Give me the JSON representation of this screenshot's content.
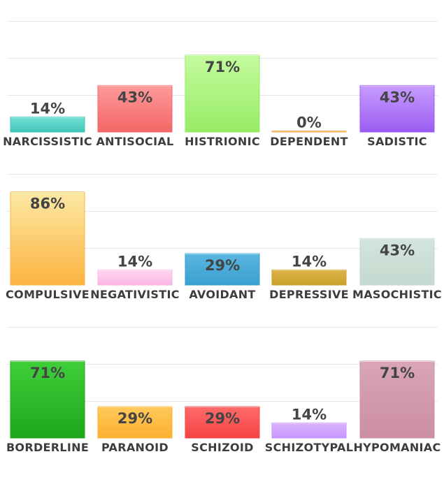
{
  "chart_data": [
    {
      "type": "bar",
      "ylim": [
        0,
        100
      ],
      "categories": [
        "NARCISSISTIC",
        "ANTISOCIAL",
        "HISTRIONIC",
        "DEPENDENT",
        "SADISTIC"
      ],
      "values": [
        14,
        43,
        71,
        0,
        43
      ],
      "value_labels": [
        "14%",
        "43%",
        "71%",
        "0%",
        "43%"
      ],
      "colors": [
        [
          "#76e0d6",
          "#3fc4b7"
        ],
        [
          "#ff9a9a",
          "#f36767"
        ],
        [
          "#c4fb9e",
          "#97eb66"
        ],
        [
          "#ffd9a8",
          "#f5b25c"
        ],
        [
          "#c79cff",
          "#9b5cf2"
        ]
      ]
    },
    {
      "type": "bar",
      "ylim": [
        0,
        100
      ],
      "categories": [
        "COMPULSIVE",
        "NEGATIVISTIC",
        "AVOIDANT",
        "DEPRESSIVE",
        "MASOCHISTIC"
      ],
      "values": [
        86,
        14,
        29,
        14,
        43
      ],
      "value_labels": [
        "86%",
        "14%",
        "29%",
        "14%",
        "43%"
      ],
      "colors": [
        [
          "#fbe8a4",
          "#fdb441"
        ],
        [
          "#ffd6f3",
          "#fbb6e3"
        ],
        [
          "#5ab7e0",
          "#3a9fd0"
        ],
        [
          "#ddb44a",
          "#c9a129"
        ],
        [
          "#d3e4dc",
          "#c4d9cf"
        ]
      ]
    },
    {
      "type": "bar",
      "ylim": [
        0,
        100
      ],
      "categories": [
        "BORDERLINE",
        "PARANOID",
        "SCHIZOID",
        "SCHIZOTYPAL",
        "HYPOMANIAC"
      ],
      "values": [
        71,
        29,
        29,
        14,
        71
      ],
      "value_labels": [
        "71%",
        "29%",
        "29%",
        "14%",
        "71%"
      ],
      "colors": [
        [
          "#3fcf3a",
          "#1ea51b"
        ],
        [
          "#ffc95a",
          "#fbb030"
        ],
        [
          "#ff6a6a",
          "#f44444"
        ],
        [
          "#dcb5ff",
          "#c595ff"
        ],
        [
          "#d9a5b7",
          "#cc8ea3"
        ]
      ]
    }
  ]
}
